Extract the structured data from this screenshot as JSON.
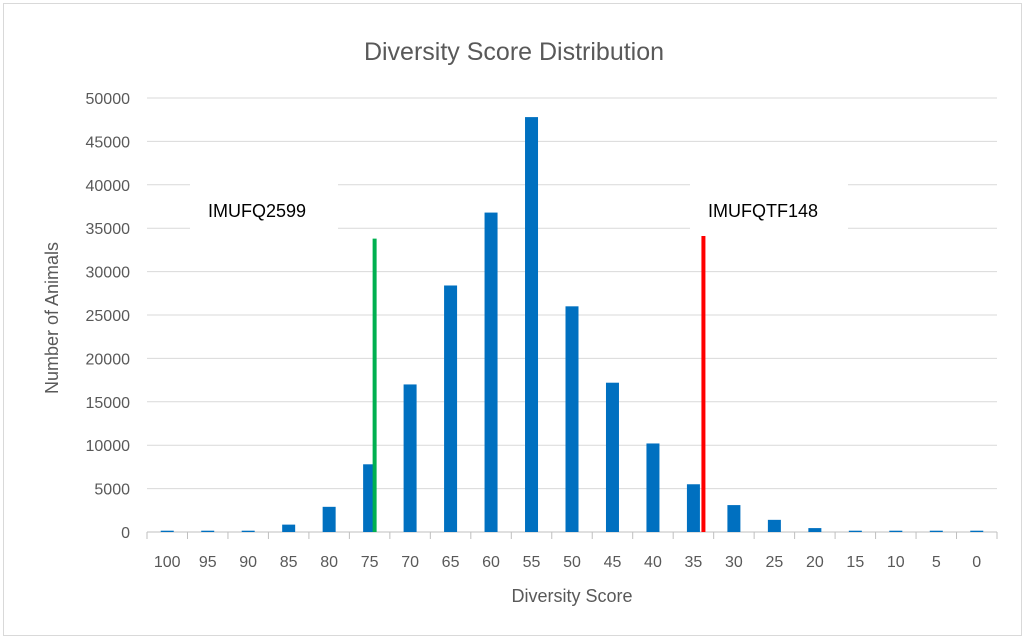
{
  "chart_data": {
    "type": "bar",
    "title": "Diversity Score Distribution",
    "xlabel": "Diversity Score",
    "ylabel": "Number of Animals",
    "categories": [
      "100",
      "95",
      "90",
      "85",
      "80",
      "75",
      "70",
      "65",
      "60",
      "55",
      "50",
      "45",
      "40",
      "35",
      "30",
      "25",
      "20",
      "15",
      "10",
      "5",
      "0"
    ],
    "values": [
      150,
      150,
      150,
      850,
      2900,
      7800,
      17000,
      28400,
      36800,
      47800,
      26000,
      17200,
      10200,
      5500,
      3100,
      1400,
      450,
      150,
      150,
      150,
      150
    ],
    "ylim": [
      0,
      50000
    ],
    "yticks": [
      "0",
      "5000",
      "10000",
      "15000",
      "20000",
      "25000",
      "30000",
      "35000",
      "40000",
      "45000",
      "50000"
    ],
    "grid": true,
    "bar_color": "#0070c0",
    "annotations": [
      {
        "label": "IMUFQ2599",
        "category": "75",
        "value": 33800,
        "color": "#00b050"
      },
      {
        "label": "IMUFQTF148",
        "category": "35",
        "value": 34100,
        "color": "#ff0000"
      }
    ]
  }
}
